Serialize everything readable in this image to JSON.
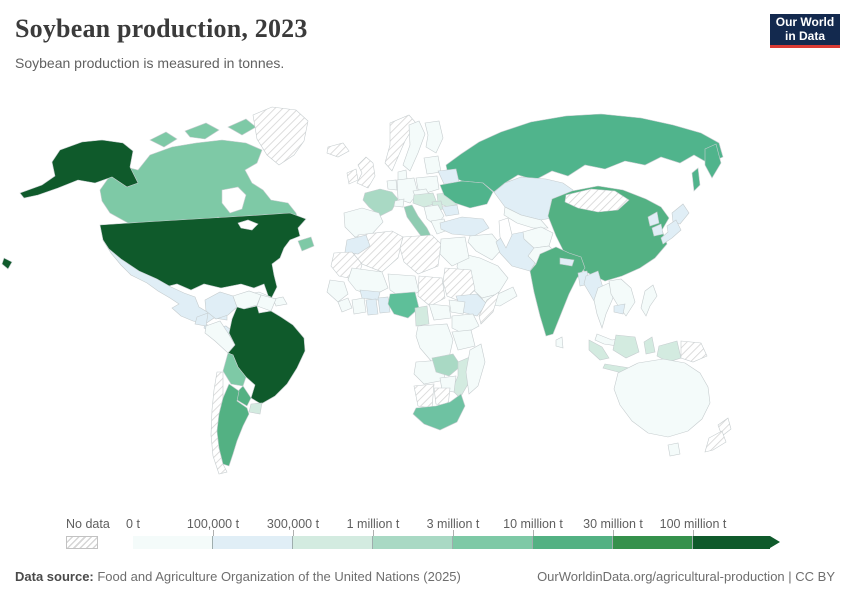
{
  "header": {
    "title": "Soybean production, 2023",
    "subtitle": "Soybean production is measured in tonnes.",
    "logo": {
      "line1": "Our World",
      "line2": "in Data",
      "bg_color": "#13294e",
      "accent_color": "#d93a34"
    }
  },
  "legend": {
    "no_data_label": "No data",
    "stops": [
      "0 t",
      "100,000 t",
      "300,000 t",
      "1 million t",
      "3 million t",
      "10 million t",
      "30 million t",
      "100 million t"
    ],
    "colors": [
      "#f4fbfa",
      "#e0eef6",
      "#d3ebe0",
      "#a9d9c4",
      "#7ec9a6",
      "#53b183",
      "#35914c",
      "#0f5a2b"
    ]
  },
  "footer": {
    "source_label": "Data source:",
    "source_text": " Food and Agriculture Organization of the United Nations (2025)",
    "right_text": "OurWorldinData.org/agricultural-production | CC BY"
  },
  "chart_data": {
    "type": "choropleth",
    "title": "Soybean production, 2023",
    "subtitle": "Soybean production is measured in tonnes.",
    "unit": "tonnes",
    "legend_position": "bottom",
    "no_data_style": "hatched",
    "bin_edges": [
      "0 t",
      "100,000 t",
      "300,000 t",
      "1 million t",
      "3 million t",
      "10 million t",
      "30 million t",
      "100 million t"
    ],
    "bin_colors": [
      "#f4fbfa",
      "#e0eef6",
      "#d3ebe0",
      "#a9d9c4",
      "#7ec9a6",
      "#53b183",
      "#35914c",
      "#0f5a2b"
    ],
    "regions": {
      "russia": 5,
      "russia-far-east": 5,
      "sakhalin": 5,
      "kazakhstan": 2,
      "central-asia": 1,
      "china": 6,
      "mongolia": 0,
      "canada": 5,
      "canada-arctic-1": 5,
      "canada-arctic-2": 5,
      "canada-arctic-3": 5,
      "newfoundland": 5,
      "greenland": 0,
      "alaska": 8,
      "hawaii": 8,
      "usa": 8,
      "mexico": 2,
      "central-america": 2,
      "cuba": 1,
      "hispaniola": 1,
      "colombia": 2,
      "venezuela": 1,
      "guianas": 1,
      "ecuador": 2,
      "peru": 1,
      "brazil": 8,
      "bolivia": 5,
      "paraguay": 6,
      "chile": 0,
      "argentina": 6,
      "uruguay": 3,
      "iceland": 0,
      "norway": 0,
      "sweden": 1,
      "finland": 1,
      "uk": 0,
      "ireland": 0,
      "baltics": 1,
      "belarus": 2,
      "denmark": 1,
      "germany": 1,
      "benelux": 1,
      "poland": 1,
      "czech-slovakia": 1,
      "france": 4,
      "iberia": 1,
      "switzerland": 1,
      "austria-hungary": 3,
      "romania": 3,
      "serbia": 3,
      "balkans": 1,
      "bulgaria": 2,
      "greece": 1,
      "italy": 4,
      "ukraine": 5,
      "turkey": 2,
      "syria-iraq": 1,
      "iran": 2,
      "saudi-arabia": 1,
      "yemen-oman": 1,
      "afghanistan": 1,
      "pakistan": 1,
      "india": 6,
      "nepal": 2,
      "bangladesh": 2,
      "sri-lanka": 1,
      "north-korea": 2,
      "south-korea": 2,
      "japan": 2,
      "japan-south": 2,
      "myanmar": 2,
      "thailand": 1,
      "laos-vietnam": 1,
      "cambodia": 2,
      "malaysia": 1,
      "philippines": 1,
      "indonesia-sumatra": 3,
      "indonesia-borneo": 3,
      "indonesia-sulawesi": 3,
      "indonesia-java": 3,
      "indonesia-papua": 3,
      "papua-new-guinea": 0,
      "australia": 1,
      "tasmania": 1,
      "new-zealand-north": 0,
      "new-zealand-south": 0,
      "algeria": 0,
      "libya": 0,
      "morocco": 2,
      "egypt": 1,
      "mauritania": 0,
      "mali": 1,
      "niger": 1,
      "chad": 0,
      "sudan": 0,
      "senegal-guinea": 1,
      "sierra-liberia": 1,
      "ivory-coast": 1,
      "burkina-faso": 2,
      "ghana": 2,
      "togo-benin": 2,
      "nigeria": 4,
      "cameroon": 3,
      "central-african-republic": 1,
      "ethiopia": 2,
      "somalia": 0,
      "south-sudan": 1,
      "uganda-kenya": 1,
      "drc": 1,
      "tanzania": 1,
      "angola": 1,
      "zambia": 4,
      "malawi-mozambique": 3,
      "zimbabwe": 1,
      "namibia": 0,
      "botswana": 0,
      "south-africa": 4,
      "madagascar": 1
    },
    "color_overrides": {
      "russia": "#50b48c",
      "russia-far-east": "#50b48c",
      "sakhalin": "#50b48c",
      "ukraine": "#50b48c",
      "nigeria": "#5ebf99",
      "south-africa": "#6ec2a2",
      "italy": "#8fccb2"
    }
  }
}
